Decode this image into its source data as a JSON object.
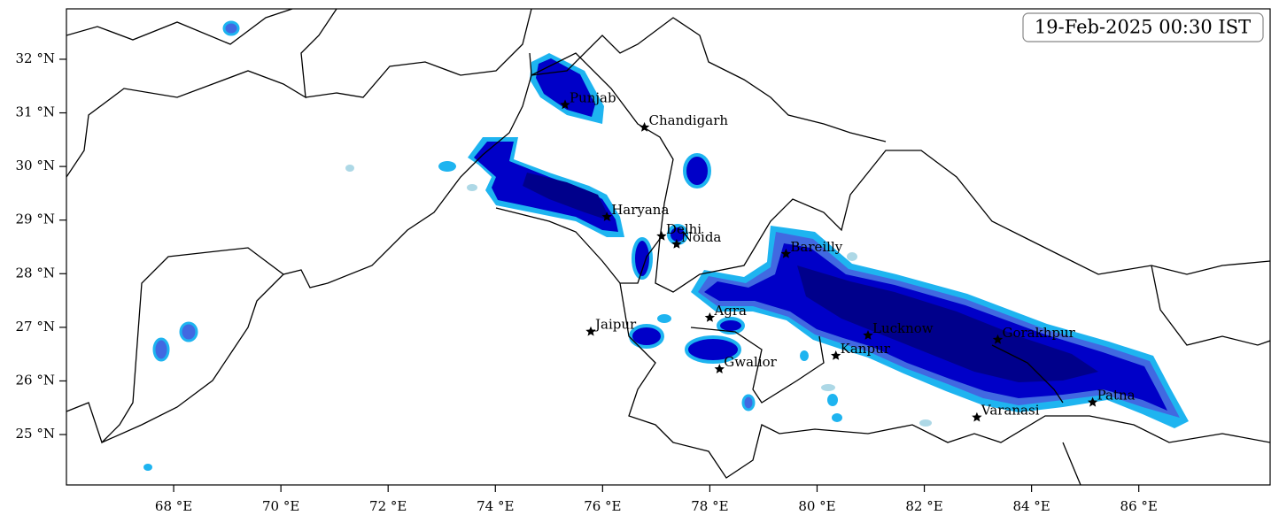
{
  "chart_data": {
    "type": "map",
    "timestamp": "19-Feb-2025 00:30 IST",
    "xlim": [
      66.0,
      88.45
    ],
    "ylim": [
      24.06,
      32.94
    ],
    "xticks": [
      {
        "value": 68,
        "label": "68 °E"
      },
      {
        "value": 70,
        "label": "70 °E"
      },
      {
        "value": 72,
        "label": "72 °E"
      },
      {
        "value": 74,
        "label": "74 °E"
      },
      {
        "value": 76,
        "label": "76 °E"
      },
      {
        "value": 78,
        "label": "78 °E"
      },
      {
        "value": 80,
        "label": "80 °E"
      },
      {
        "value": 82,
        "label": "82 °E"
      },
      {
        "value": 84,
        "label": "84 °E"
      },
      {
        "value": 86,
        "label": "86 °E"
      }
    ],
    "yticks": [
      {
        "value": 25,
        "label": "25 °N"
      },
      {
        "value": 26,
        "label": "26 °N"
      },
      {
        "value": 27,
        "label": "27 °N"
      },
      {
        "value": 28,
        "label": "28 °N"
      },
      {
        "value": 29,
        "label": "29 °N"
      },
      {
        "value": 30,
        "label": "30 °N"
      },
      {
        "value": 31,
        "label": "31 °N"
      },
      {
        "value": 32,
        "label": "32 °N"
      }
    ],
    "cities": [
      {
        "name": "Punjab",
        "lon": 75.3,
        "lat": 31.15
      },
      {
        "name": "Chandigarh",
        "lon": 76.78,
        "lat": 30.73
      },
      {
        "name": "Haryana",
        "lon": 76.08,
        "lat": 29.06
      },
      {
        "name": "Delhi",
        "lon": 77.1,
        "lat": 28.7
      },
      {
        "name": "Noida",
        "lon": 77.38,
        "lat": 28.55
      },
      {
        "name": "Bareilly",
        "lon": 79.42,
        "lat": 28.37
      },
      {
        "name": "Agra",
        "lon": 78.0,
        "lat": 27.18
      },
      {
        "name": "Jaipur",
        "lon": 75.78,
        "lat": 26.92
      },
      {
        "name": "Lucknow",
        "lon": 80.95,
        "lat": 26.85
      },
      {
        "name": "Gorakhpur",
        "lon": 83.37,
        "lat": 26.77
      },
      {
        "name": "Kanpur",
        "lon": 80.35,
        "lat": 26.47
      },
      {
        "name": "Gwalior",
        "lon": 78.18,
        "lat": 26.22
      },
      {
        "name": "Patna",
        "lon": 85.14,
        "lat": 25.6
      },
      {
        "name": "Varanasi",
        "lon": 82.98,
        "lat": 25.32
      }
    ]
  }
}
